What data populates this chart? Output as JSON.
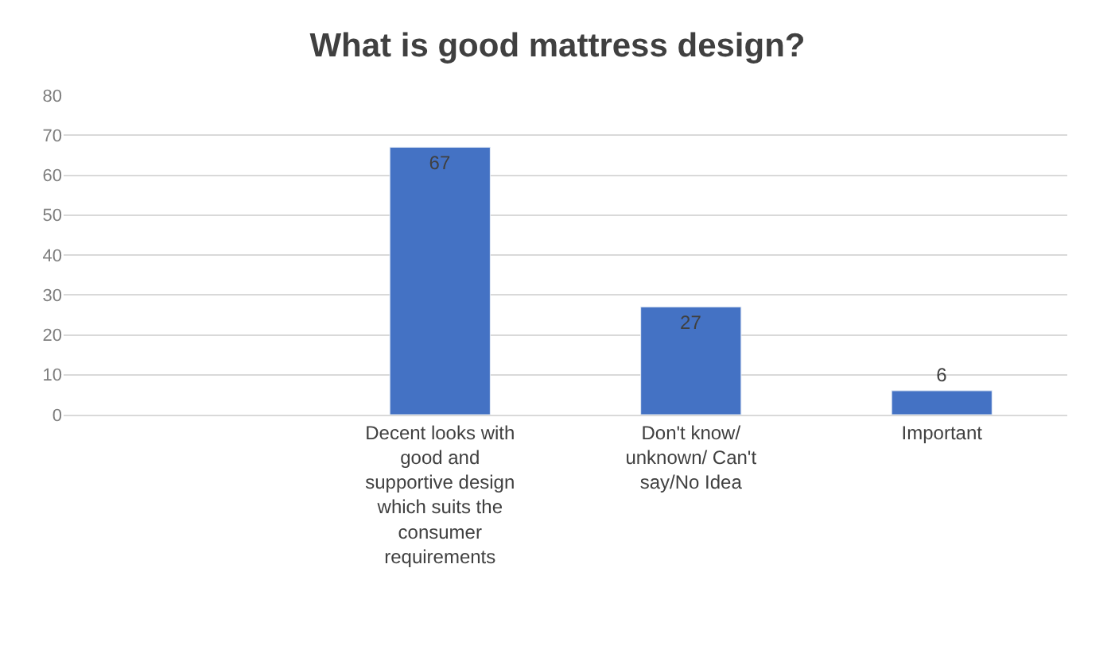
{
  "chart_data": {
    "type": "bar",
    "title": "What is good mattress design?",
    "categories": [
      null,
      "Decent looks with\ngood and\nsupportive design\nwhich suits the\nconsumer\nrequirements",
      "Don't know/\nunknown/ Can't\nsay/No Idea",
      "Important"
    ],
    "values": [
      null,
      67,
      27,
      6
    ],
    "color": "#4472c4",
    "ylim": [
      0,
      80
    ],
    "yticks": [
      0,
      10,
      20,
      30,
      40,
      50,
      60,
      70,
      80
    ],
    "grid": "y",
    "data_labels": true
  }
}
